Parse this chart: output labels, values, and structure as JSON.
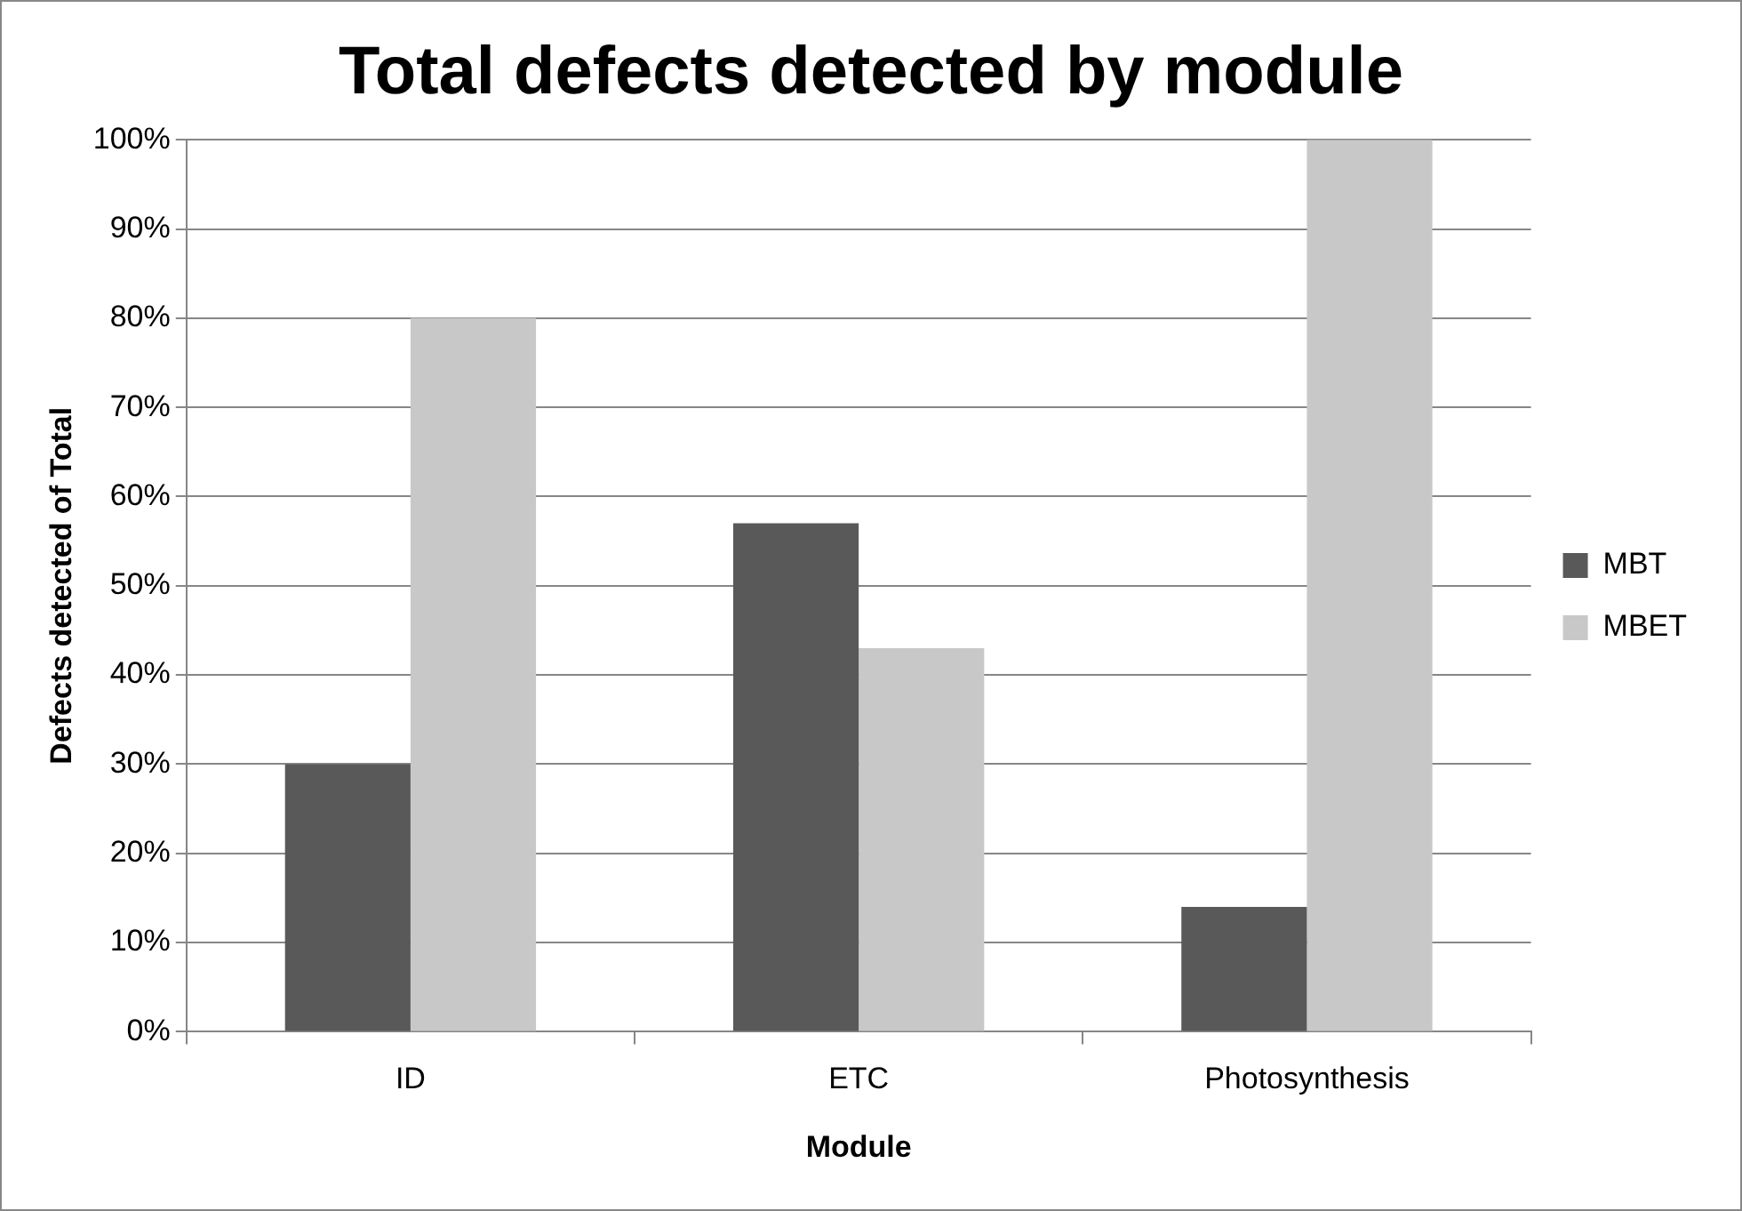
{
  "chart_data": {
    "type": "bar",
    "title": "Total defects detected by module",
    "xlabel": "Module",
    "ylabel": "Defects detected of Total",
    "categories": [
      "ID",
      "ETC",
      "Photosynthesis"
    ],
    "series": [
      {
        "name": "MBT",
        "color": "#595959",
        "values": [
          30,
          57,
          14
        ]
      },
      {
        "name": "MBET",
        "color": "#c8c8c8",
        "values": [
          80,
          43,
          100
        ]
      }
    ],
    "ylim": [
      0,
      100
    ],
    "yticks": [
      {
        "value": 0,
        "label": "0%"
      },
      {
        "value": 10,
        "label": "10%"
      },
      {
        "value": 20,
        "label": "20%"
      },
      {
        "value": 30,
        "label": "30%"
      },
      {
        "value": 40,
        "label": "40%"
      },
      {
        "value": 50,
        "label": "50%"
      },
      {
        "value": 60,
        "label": "60%"
      },
      {
        "value": 70,
        "label": "70%"
      },
      {
        "value": 80,
        "label": "80%"
      },
      {
        "value": 90,
        "label": "90%"
      },
      {
        "value": 100,
        "label": "100%"
      }
    ],
    "grid": "y",
    "legend": "right"
  }
}
